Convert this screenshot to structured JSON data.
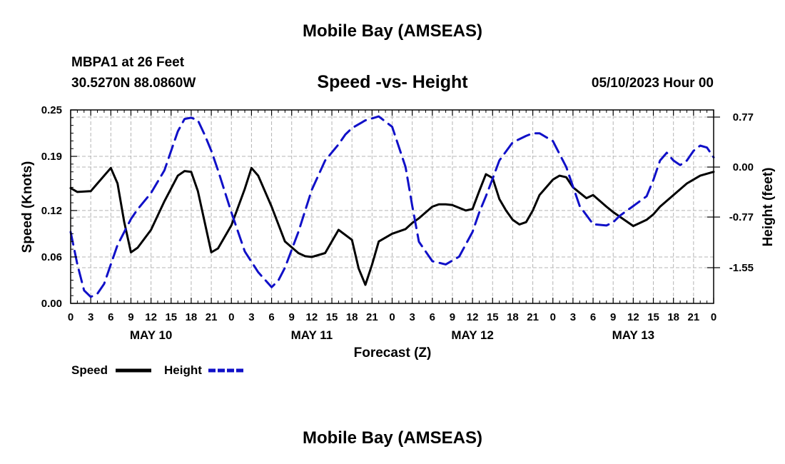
{
  "header": {
    "title": "Mobile Bay (AMSEAS)",
    "station": "MBPA1 at 26 Feet",
    "coordinates": "30.5270N  88.0860W",
    "subtitle": "Speed -vs- Height",
    "date": "05/10/2023 Hour 00"
  },
  "footer": {
    "title": "Mobile Bay (AMSEAS)"
  },
  "legend": {
    "speed_label": "Speed",
    "height_label": "Height"
  },
  "colors": {
    "speed": "#000000",
    "height": "#1010c8",
    "grid": "#b4b4b4"
  },
  "chart_data": {
    "type": "line",
    "title": "Speed -vs- Height",
    "xlabel": "Forecast (Z)",
    "ylabel": "Speed (Knots)",
    "y2label": "Height (feet)",
    "xlim": [
      0,
      96
    ],
    "ylim": [
      0,
      0.25
    ],
    "y2lim": [
      -2.1,
      0.88
    ],
    "yticks": [
      0.0,
      0.06,
      0.12,
      0.19,
      0.25
    ],
    "ytick_labels": [
      "0.00",
      "0.06",
      "0.12",
      "0.19",
      "0.25"
    ],
    "y2ticks": [
      -1.55,
      -0.77,
      0.0,
      0.77
    ],
    "y2tick_labels": [
      "-1.55",
      "-0.77",
      "0.00",
      "0.77"
    ],
    "xticks": [
      0,
      3,
      6,
      9,
      12,
      15,
      18,
      21,
      24,
      27,
      30,
      33,
      36,
      39,
      42,
      45,
      48,
      51,
      54,
      57,
      60,
      63,
      66,
      69,
      72,
      75,
      78,
      81,
      84,
      87,
      90,
      93,
      96
    ],
    "xtick_labels": [
      "0",
      "3",
      "6",
      "9",
      "12",
      "15",
      "18",
      "21",
      "0",
      "3",
      "6",
      "9",
      "12",
      "15",
      "18",
      "21",
      "0",
      "3",
      "6",
      "9",
      "12",
      "15",
      "18",
      "21",
      "0",
      "3",
      "6",
      "9",
      "12",
      "15",
      "18",
      "21",
      "0"
    ],
    "day_labels": [
      {
        "label": "MAY 10",
        "x": 12
      },
      {
        "label": "MAY 11",
        "x": 36
      },
      {
        "label": "MAY 12",
        "x": 60
      },
      {
        "label": "MAY 13",
        "x": 84
      }
    ],
    "legend_position": "bottom-left",
    "grid": true,
    "series": [
      {
        "name": "Speed",
        "axis": "left",
        "style": "solid",
        "x": [
          0,
          1,
          3,
          4,
          6,
          7,
          8,
          9,
          10,
          12,
          14,
          16,
          17,
          18,
          19,
          21,
          22,
          24,
          26,
          27,
          28,
          30,
          32,
          34,
          35,
          36,
          38,
          39,
          40,
          42,
          43,
          44,
          45,
          46,
          48,
          50,
          51,
          52,
          54,
          55,
          56,
          57,
          59,
          60,
          61,
          62,
          63,
          64,
          65,
          66,
          67,
          68,
          69,
          70,
          72,
          73,
          74,
          75,
          77,
          78,
          80,
          81,
          82,
          84,
          85,
          86,
          87,
          88,
          90,
          92,
          94,
          96
        ],
        "values": [
          0.149,
          0.144,
          0.145,
          0.155,
          0.175,
          0.155,
          0.105,
          0.066,
          0.072,
          0.095,
          0.132,
          0.165,
          0.171,
          0.17,
          0.145,
          0.066,
          0.071,
          0.101,
          0.148,
          0.175,
          0.165,
          0.125,
          0.08,
          0.065,
          0.061,
          0.06,
          0.065,
          0.08,
          0.095,
          0.082,
          0.045,
          0.024,
          0.05,
          0.08,
          0.09,
          0.096,
          0.104,
          0.11,
          0.125,
          0.128,
          0.128,
          0.127,
          0.12,
          0.122,
          0.145,
          0.167,
          0.162,
          0.135,
          0.12,
          0.108,
          0.102,
          0.105,
          0.12,
          0.14,
          0.16,
          0.165,
          0.163,
          0.15,
          0.136,
          0.14,
          0.125,
          0.118,
          0.112,
          0.1,
          0.104,
          0.108,
          0.115,
          0.125,
          0.14,
          0.155,
          0.165,
          0.17
        ]
      },
      {
        "name": "Height",
        "axis": "right",
        "style": "dashed",
        "x": [
          0,
          1,
          2,
          3,
          4,
          5,
          6,
          7,
          8,
          9,
          10,
          12,
          14,
          15,
          16,
          17,
          18,
          19,
          20,
          21,
          22,
          24,
          26,
          28,
          30,
          31,
          32,
          34,
          36,
          38,
          40,
          41,
          42,
          44,
          46,
          48,
          50,
          51,
          52,
          54,
          56,
          58,
          60,
          61,
          62,
          63,
          64,
          66,
          68,
          69,
          70,
          72,
          74,
          75,
          76,
          78,
          80,
          81,
          82,
          84,
          86,
          87,
          88,
          89,
          90,
          91,
          92,
          93,
          94,
          95,
          96
        ],
        "values": [
          -1.0,
          -1.5,
          -1.9,
          -2.0,
          -1.95,
          -1.8,
          -1.5,
          -1.2,
          -1.0,
          -0.8,
          -0.65,
          -0.4,
          -0.05,
          0.25,
          0.55,
          0.74,
          0.76,
          0.72,
          0.5,
          0.25,
          -0.05,
          -0.7,
          -1.3,
          -1.62,
          -1.85,
          -1.75,
          -1.55,
          -1.0,
          -0.35,
          0.1,
          0.35,
          0.5,
          0.6,
          0.72,
          0.78,
          0.62,
          0.0,
          -0.6,
          -1.15,
          -1.45,
          -1.5,
          -1.38,
          -1.0,
          -0.7,
          -0.45,
          -0.18,
          0.1,
          0.38,
          0.48,
          0.52,
          0.52,
          0.4,
          0.0,
          -0.3,
          -0.6,
          -0.88,
          -0.9,
          -0.85,
          -0.75,
          -0.6,
          -0.45,
          -0.2,
          0.1,
          0.22,
          0.1,
          0.03,
          0.1,
          0.25,
          0.33,
          0.3,
          0.15
        ]
      }
    ]
  }
}
